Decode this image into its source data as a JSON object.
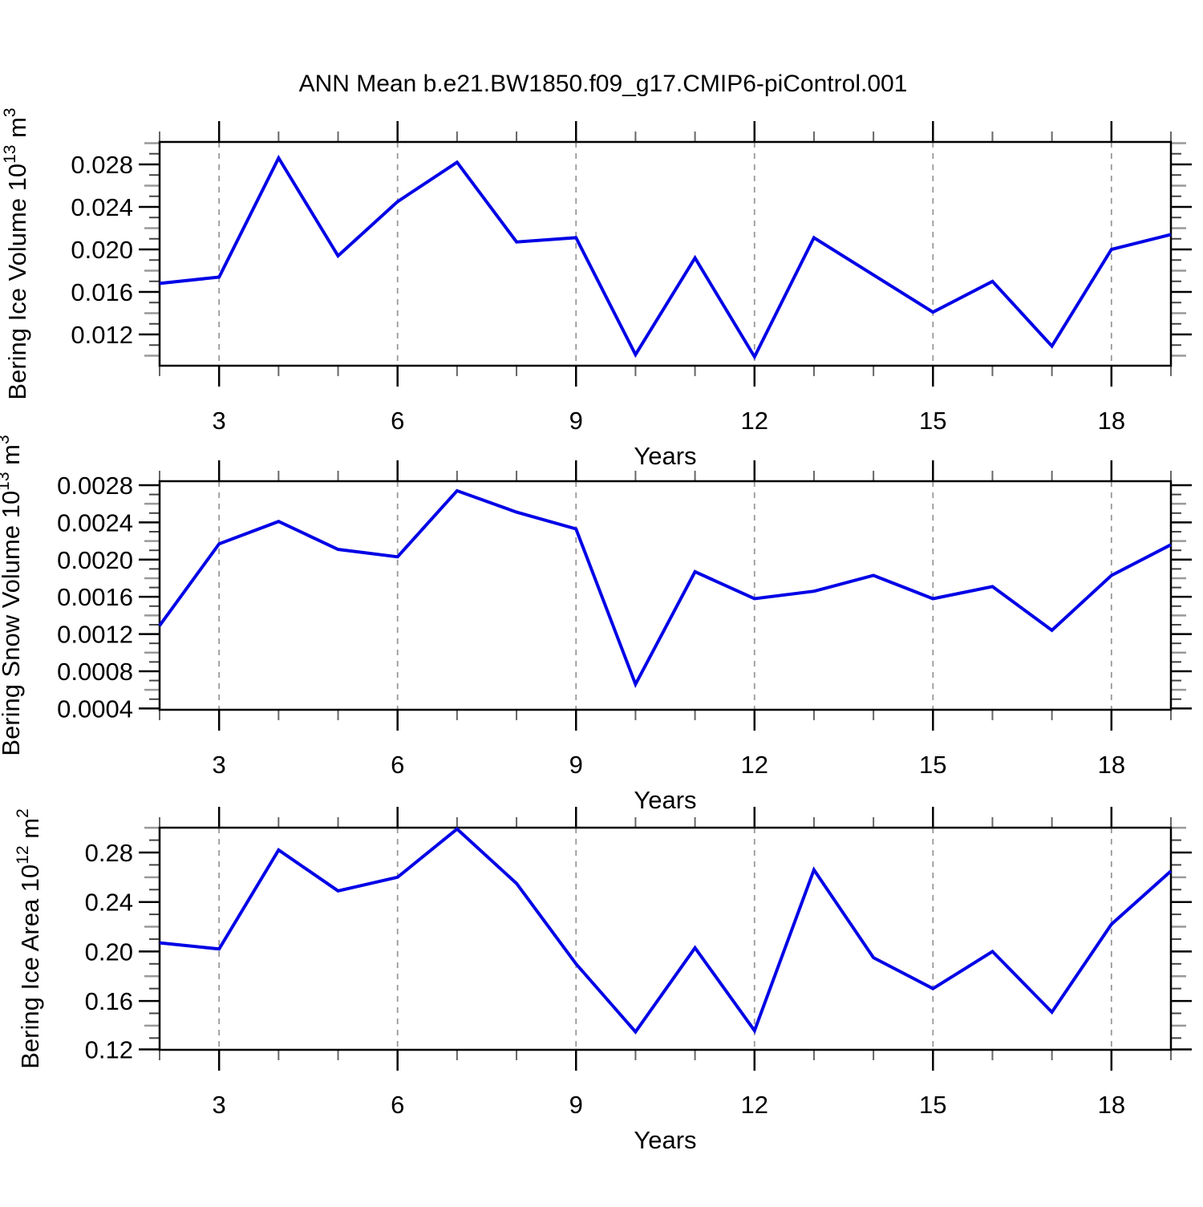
{
  "title": "ANN Mean b.e21.BW1850.f09_g17.CMIP6-piControl.001",
  "x_axis": {
    "label": "Years",
    "range": [
      2,
      19
    ],
    "major_ticks": [
      3,
      6,
      9,
      12,
      15,
      18
    ],
    "minor_step": 1
  },
  "style": {
    "line_color": "#0000E6",
    "axis_color": "#000000",
    "grid_color": "#999999",
    "minor_tick_color": "#444444",
    "mid_tick_color": "#999999",
    "background": "#ffffff"
  },
  "chart_data": [
    {
      "type": "line",
      "name": "bering-ice-volume",
      "ylabel_parts": [
        {
          "t": "Bering Ice Volume 10"
        },
        {
          "t": "13",
          "sup": true
        },
        {
          "t": " m"
        },
        {
          "t": "3",
          "sup": true
        }
      ],
      "xlabel": "Years",
      "x": [
        2,
        3,
        4,
        5,
        6,
        7,
        8,
        9,
        10,
        11,
        12,
        13,
        14,
        15,
        16,
        17,
        18,
        19
      ],
      "values": [
        0.0168,
        0.0174,
        0.0286,
        0.0194,
        0.0245,
        0.0282,
        0.0207,
        0.0211,
        0.0101,
        0.0192,
        0.0099,
        0.0211,
        0.0176,
        0.0141,
        0.017,
        0.0109,
        0.02,
        0.0214
      ],
      "y_major_ticks": [
        0.012,
        0.016,
        0.02,
        0.024,
        0.028
      ],
      "y_tick_labels": [
        "0.012",
        "0.016",
        "0.020",
        "0.024",
        "0.028"
      ],
      "y_minor_step": 0.001,
      "ylim": [
        0.00906,
        0.03011
      ],
      "grid": true,
      "legend": "none"
    },
    {
      "type": "line",
      "name": "bering-snow-volume",
      "ylabel_parts": [
        {
          "t": "Bering Snow Volume 10"
        },
        {
          "t": "13",
          "sup": true
        },
        {
          "t": " m"
        },
        {
          "t": "3",
          "sup": true
        }
      ],
      "xlabel": "Years",
      "x": [
        2,
        3,
        4,
        5,
        6,
        7,
        8,
        9,
        10,
        11,
        12,
        13,
        14,
        15,
        16,
        17,
        18,
        19
      ],
      "values": [
        0.00129,
        0.00217,
        0.00241,
        0.00211,
        0.00203,
        0.00274,
        0.00251,
        0.00233,
        0.00066,
        0.00187,
        0.00158,
        0.00166,
        0.00183,
        0.00158,
        0.00171,
        0.00124,
        0.00183,
        0.00216
      ],
      "y_major_ticks": [
        0.0004,
        0.0008,
        0.0012,
        0.0016,
        0.002,
        0.0024,
        0.0028
      ],
      "y_tick_labels": [
        "0.0004",
        "0.0008",
        "0.0012",
        "0.0016",
        "0.0020",
        "0.0024",
        "0.0028"
      ],
      "y_minor_step": 0.0001,
      "ylim": [
        0.000386,
        0.002843
      ],
      "grid": true,
      "legend": "none"
    },
    {
      "type": "line",
      "name": "bering-ice-area",
      "ylabel_parts": [
        {
          "t": "Bering Ice Area 10"
        },
        {
          "t": "12",
          "sup": true
        },
        {
          "t": " m"
        },
        {
          "t": "2",
          "sup": true
        }
      ],
      "xlabel": "Years",
      "x": [
        2,
        3,
        4,
        5,
        6,
        7,
        8,
        9,
        10,
        11,
        12,
        13,
        14,
        15,
        16,
        17,
        18,
        19
      ],
      "values": [
        0.207,
        0.202,
        0.282,
        0.249,
        0.26,
        0.299,
        0.255,
        0.19,
        0.135,
        0.203,
        0.136,
        0.266,
        0.195,
        0.17,
        0.2,
        0.151,
        0.222,
        0.265
      ],
      "y_major_ticks": [
        0.12,
        0.16,
        0.2,
        0.24,
        0.28
      ],
      "y_tick_labels": [
        "0.12",
        "0.16",
        "0.20",
        "0.24",
        "0.28"
      ],
      "y_minor_step": 0.01,
      "ylim": [
        0.1205,
        0.3001
      ],
      "grid": true,
      "legend": "none"
    }
  ]
}
